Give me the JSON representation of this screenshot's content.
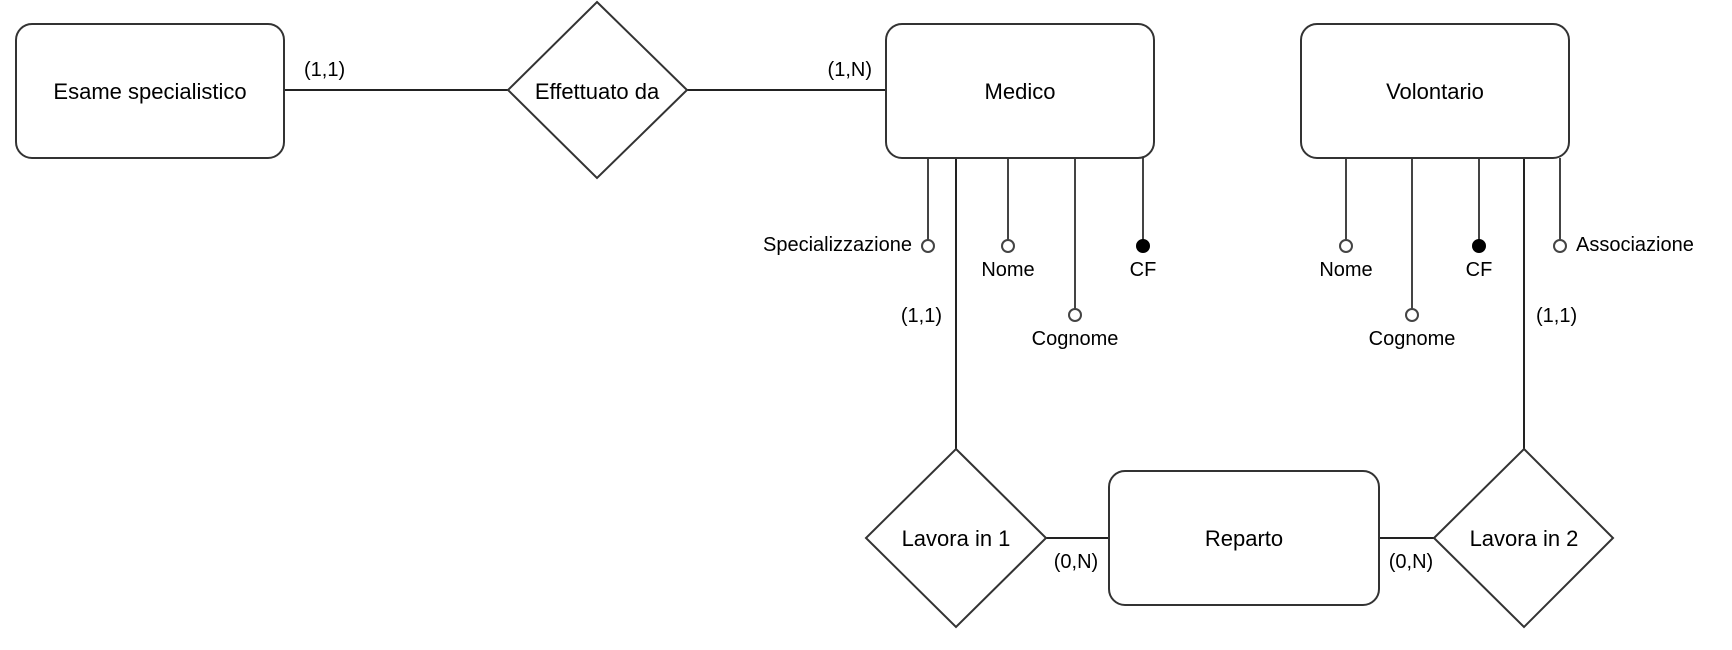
{
  "entities": {
    "esame": "Esame specialistico",
    "medico": "Medico",
    "volontario": "Volontario",
    "reparto": "Reparto"
  },
  "relationships": {
    "effettuato": "Effettuato da",
    "lavora1": "Lavora in 1",
    "lavora2": "Lavora in 2"
  },
  "attributes": {
    "medico": {
      "specializzazione": "Specializzazione",
      "nome": "Nome",
      "cognome": "Cognome",
      "cf": "CF"
    },
    "volontario": {
      "nome": "Nome",
      "cognome": "Cognome",
      "cf": "CF",
      "associazione": "Associazione"
    }
  },
  "cardinalities": {
    "esame_effettuato": "(1,1)",
    "medico_effettuato": "(1,N)",
    "medico_lavora1": "(1,1)",
    "reparto_lavora1": "(0,N)",
    "reparto_lavora2": "(0,N)",
    "volontario_lavora2": "(1,1)"
  }
}
